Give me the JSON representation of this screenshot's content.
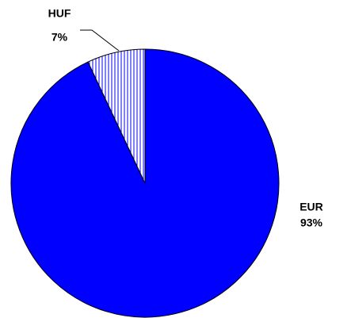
{
  "chart_data": {
    "type": "pie",
    "categories": [
      "EUR",
      "HUF"
    ],
    "values": [
      93,
      7
    ],
    "value_labels": [
      "93%",
      "7%"
    ],
    "colors": [
      "#0000ff",
      "#ffffff"
    ]
  }
}
